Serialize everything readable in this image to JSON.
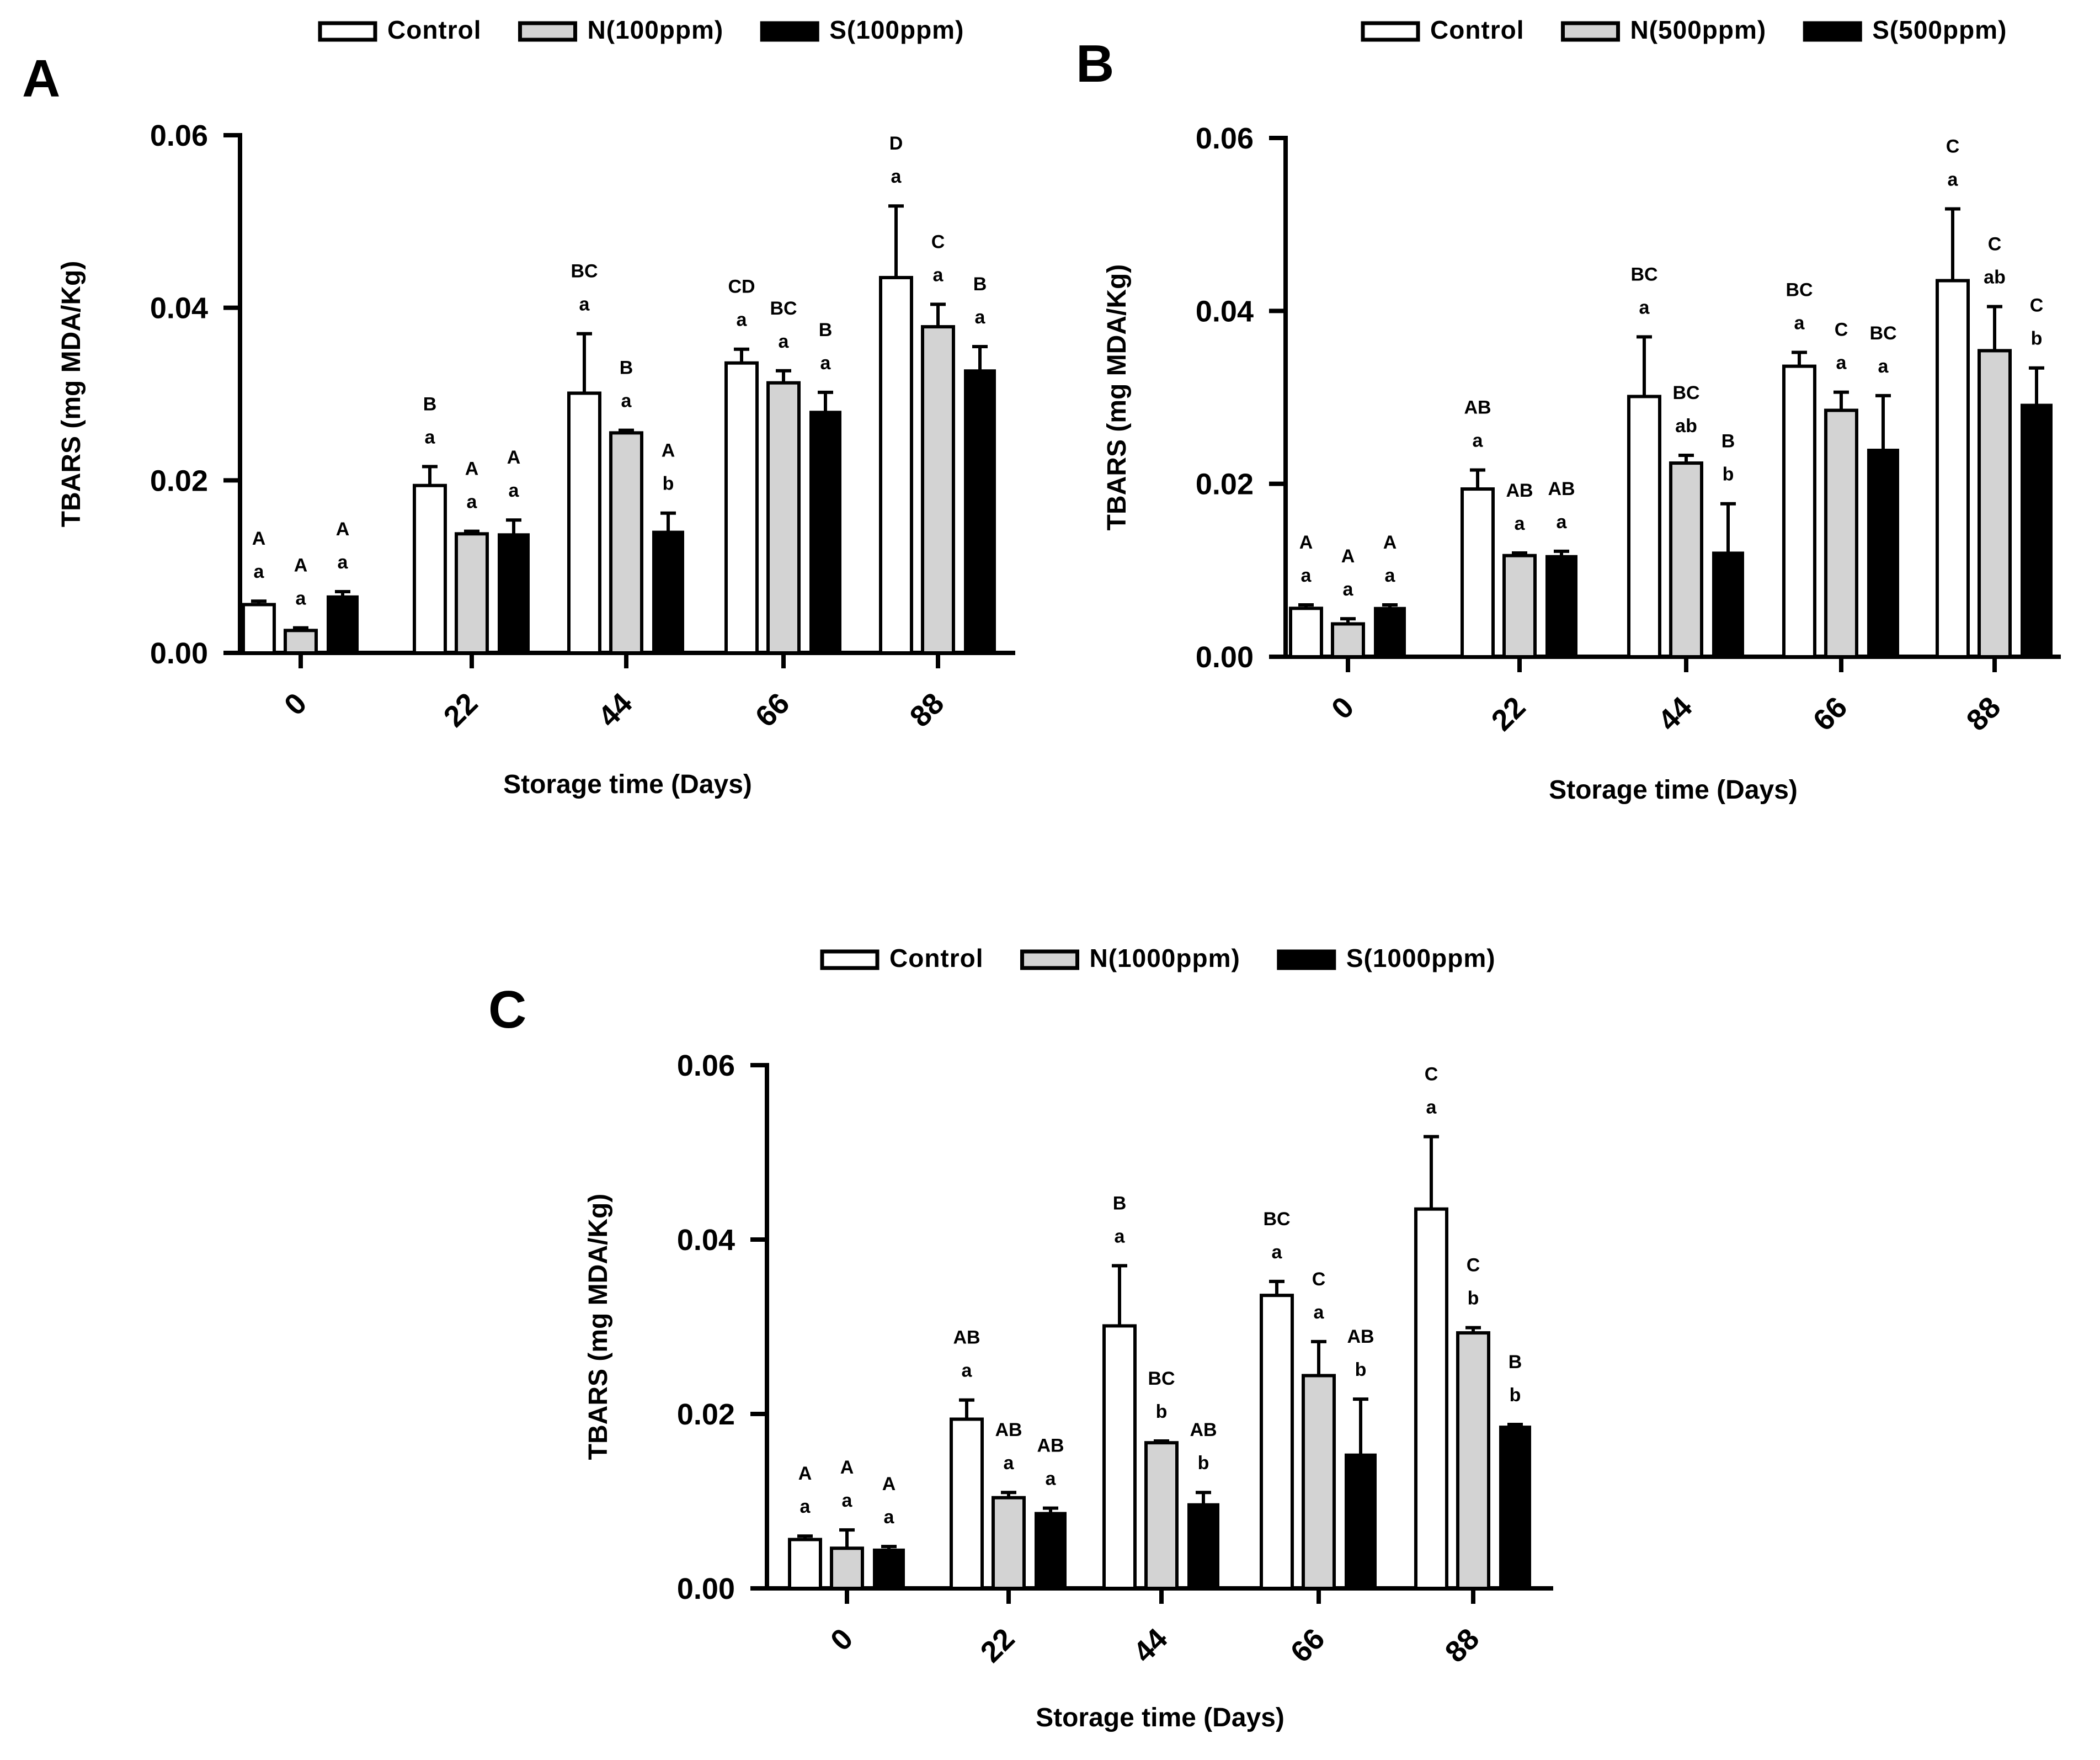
{
  "chart_data": [
    {
      "panel": "A",
      "type": "bar",
      "xlabel": "Storage time (Days)",
      "ylabel": "TBARS (mg MDA/Kg)",
      "ylim": [
        0,
        0.06
      ],
      "yticks": [
        "0.00",
        "0.02",
        "0.04",
        "0.06"
      ],
      "categories": [
        "0",
        "22",
        "44",
        "66",
        "88"
      ],
      "legend": [
        "Control",
        "N(100ppm)",
        "S(100ppm)"
      ],
      "series": [
        {
          "name": "Control",
          "fill": "#ffffff",
          "values": [
            0.0056,
            0.0194,
            0.0301,
            0.0336,
            0.0435
          ],
          "errors": [
            0.0004,
            0.0022,
            0.0069,
            0.0016,
            0.0083
          ],
          "sig_upper": [
            "A",
            "B",
            "BC",
            "CD",
            "D"
          ],
          "sig_lower": [
            "a",
            "a",
            "a",
            "a",
            "a"
          ]
        },
        {
          "name": "N(100ppm)",
          "fill": "#d3d3d3",
          "values": [
            0.0026,
            0.0138,
            0.0255,
            0.0313,
            0.0378
          ],
          "errors": [
            0.0003,
            0.0003,
            0.0003,
            0.0014,
            0.0026
          ],
          "sig_upper": [
            "A",
            "A",
            "B",
            "BC",
            "C"
          ],
          "sig_lower": [
            "a",
            "a",
            "a",
            "a",
            "a"
          ]
        },
        {
          "name": "S(100ppm)",
          "fill": "#000000",
          "values": [
            0.0066,
            0.0138,
            0.0141,
            0.028,
            0.0328
          ],
          "errors": [
            0.0005,
            0.0016,
            0.0021,
            0.0022,
            0.0027
          ],
          "sig_upper": [
            "A",
            "A",
            "A",
            "B",
            "B"
          ],
          "sig_lower": [
            "a",
            "a",
            "b",
            "a",
            "a"
          ]
        }
      ]
    },
    {
      "panel": "B",
      "type": "bar",
      "xlabel": "Storage time (Days)",
      "ylabel": "TBARS (mg MDA/Kg)",
      "ylim": [
        0,
        0.06
      ],
      "yticks": [
        "0.00",
        "0.02",
        "0.04",
        "0.06"
      ],
      "categories": [
        "0",
        "22",
        "44",
        "66",
        "88"
      ],
      "legend": [
        "Control",
        "N(500ppm)",
        "S(500ppm)"
      ],
      "series": [
        {
          "name": "Control",
          "fill": "#ffffff",
          "values": [
            0.0056,
            0.0194,
            0.0301,
            0.0336,
            0.0435
          ],
          "errors": [
            0.0004,
            0.0022,
            0.0069,
            0.0016,
            0.0083
          ],
          "sig_upper": [
            "A",
            "AB",
            "BC",
            "BC",
            "C"
          ],
          "sig_lower": [
            "a",
            "a",
            "a",
            "a",
            "a"
          ]
        },
        {
          "name": "N(500ppm)",
          "fill": "#d3d3d3",
          "values": [
            0.0038,
            0.0117,
            0.0224,
            0.0285,
            0.0354
          ],
          "errors": [
            0.0006,
            0.0003,
            0.0009,
            0.0021,
            0.0051
          ],
          "sig_upper": [
            "A",
            "AB",
            "BC",
            "C",
            "C"
          ],
          "sig_lower": [
            "a",
            "a",
            "ab",
            "a",
            "ab"
          ]
        },
        {
          "name": "S(500ppm)",
          "fill": "#000000",
          "values": [
            0.0057,
            0.0117,
            0.0121,
            0.024,
            0.0292
          ],
          "errors": [
            0.0003,
            0.0005,
            0.0056,
            0.0062,
            0.0042
          ],
          "sig_upper": [
            "A",
            "AB",
            "B",
            "BC",
            "C"
          ],
          "sig_lower": [
            "a",
            "a",
            "b",
            "a",
            "b"
          ]
        }
      ]
    },
    {
      "panel": "C",
      "type": "bar",
      "xlabel": "Storage time (Days)",
      "ylabel": "TBARS (mg MDA/Kg)",
      "ylim": [
        0,
        0.06
      ],
      "yticks": [
        "0.00",
        "0.02",
        "0.04",
        "0.06"
      ],
      "categories": [
        "0",
        "22",
        "44",
        "66",
        "88"
      ],
      "legend": [
        "Control",
        "N(1000ppm)",
        "S(1000ppm)"
      ],
      "series": [
        {
          "name": "Control",
          "fill": "#ffffff",
          "values": [
            0.0056,
            0.0194,
            0.0301,
            0.0336,
            0.0435
          ],
          "errors": [
            0.0004,
            0.0022,
            0.0069,
            0.0016,
            0.0083
          ],
          "sig_upper": [
            "A",
            "AB",
            "B",
            "BC",
            "C"
          ],
          "sig_lower": [
            "a",
            "a",
            "a",
            "a",
            "a"
          ]
        },
        {
          "name": "N(1000ppm)",
          "fill": "#d3d3d3",
          "values": [
            0.0046,
            0.0104,
            0.0167,
            0.0244,
            0.0293
          ],
          "errors": [
            0.0021,
            0.0006,
            0.0002,
            0.0039,
            0.0006
          ],
          "sig_upper": [
            "A",
            "AB",
            "BC",
            "C",
            "C"
          ],
          "sig_lower": [
            "a",
            "a",
            "b",
            "a",
            "b"
          ]
        },
        {
          "name": "S(1000ppm)",
          "fill": "#000000",
          "values": [
            0.0045,
            0.0087,
            0.0097,
            0.0154,
            0.0186
          ],
          "errors": [
            0.0003,
            0.0005,
            0.0013,
            0.0063,
            0.0002
          ],
          "sig_upper": [
            "A",
            "AB",
            "AB",
            "AB",
            "B"
          ],
          "sig_lower": [
            "a",
            "a",
            "b",
            "b",
            "b"
          ]
        }
      ]
    }
  ]
}
